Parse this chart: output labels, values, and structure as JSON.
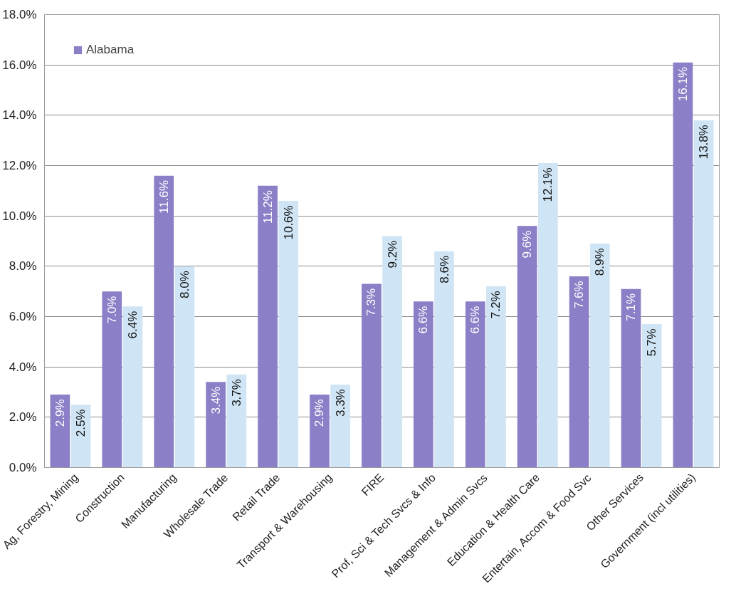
{
  "chart_data": {
    "type": "bar",
    "categories": [
      "Ag, Forestry, Mining",
      "Construction",
      "Manufacturing",
      "Wholesale Trade",
      "Retail Trade",
      "Transport & Warehousing",
      "FIRE",
      "Prof, Sci & Tech Svcs & Info",
      "Management & Admin Svcs",
      "Education & Health Care",
      "Entertain, Accom & Food Svc",
      "Other Services",
      "Government (incl utilities)"
    ],
    "series": [
      {
        "name": "Alabama",
        "color": "#8b7fc7",
        "values": [
          2.9,
          7.0,
          11.6,
          3.4,
          11.2,
          2.9,
          7.3,
          6.6,
          6.6,
          9.6,
          7.6,
          7.1,
          16.1
        ],
        "value_labels": [
          "2.9%",
          "7.0%",
          "11.6%",
          "3.4%",
          "11.2%",
          "2.9%",
          "7.3%",
          "6.6%",
          "6.6%",
          "9.6%",
          "7.6%",
          "7.1%",
          "16.1%"
        ]
      },
      {
        "color": "#cfe5f5",
        "values": [
          2.5,
          6.4,
          8.0,
          3.7,
          10.6,
          3.3,
          9.2,
          8.6,
          7.2,
          12.1,
          8.9,
          5.7,
          13.8
        ],
        "value_labels": [
          "2.5%",
          "6.4%",
          "8.0%",
          "3.7%",
          "10.6%",
          "3.3%",
          "9.2%",
          "8.6%",
          "7.2%",
          "12.1%",
          "8.9%",
          "5.7%",
          "13.8%"
        ]
      }
    ],
    "ylim": [
      0,
      18
    ],
    "yticks": [
      {
        "value": 0,
        "label": "0.0%"
      },
      {
        "value": 2,
        "label": "2.0%"
      },
      {
        "value": 4,
        "label": "4.0%"
      },
      {
        "value": 6,
        "label": "6.0%"
      },
      {
        "value": 8,
        "label": "8.0%"
      },
      {
        "value": 10,
        "label": "10.0%"
      },
      {
        "value": 12,
        "label": "12.0%"
      },
      {
        "value": 14,
        "label": "14.0%"
      },
      {
        "value": 16,
        "label": "16.0%"
      },
      {
        "value": 18,
        "label": "18.0%"
      }
    ],
    "grid": "y",
    "legend": "top left"
  }
}
